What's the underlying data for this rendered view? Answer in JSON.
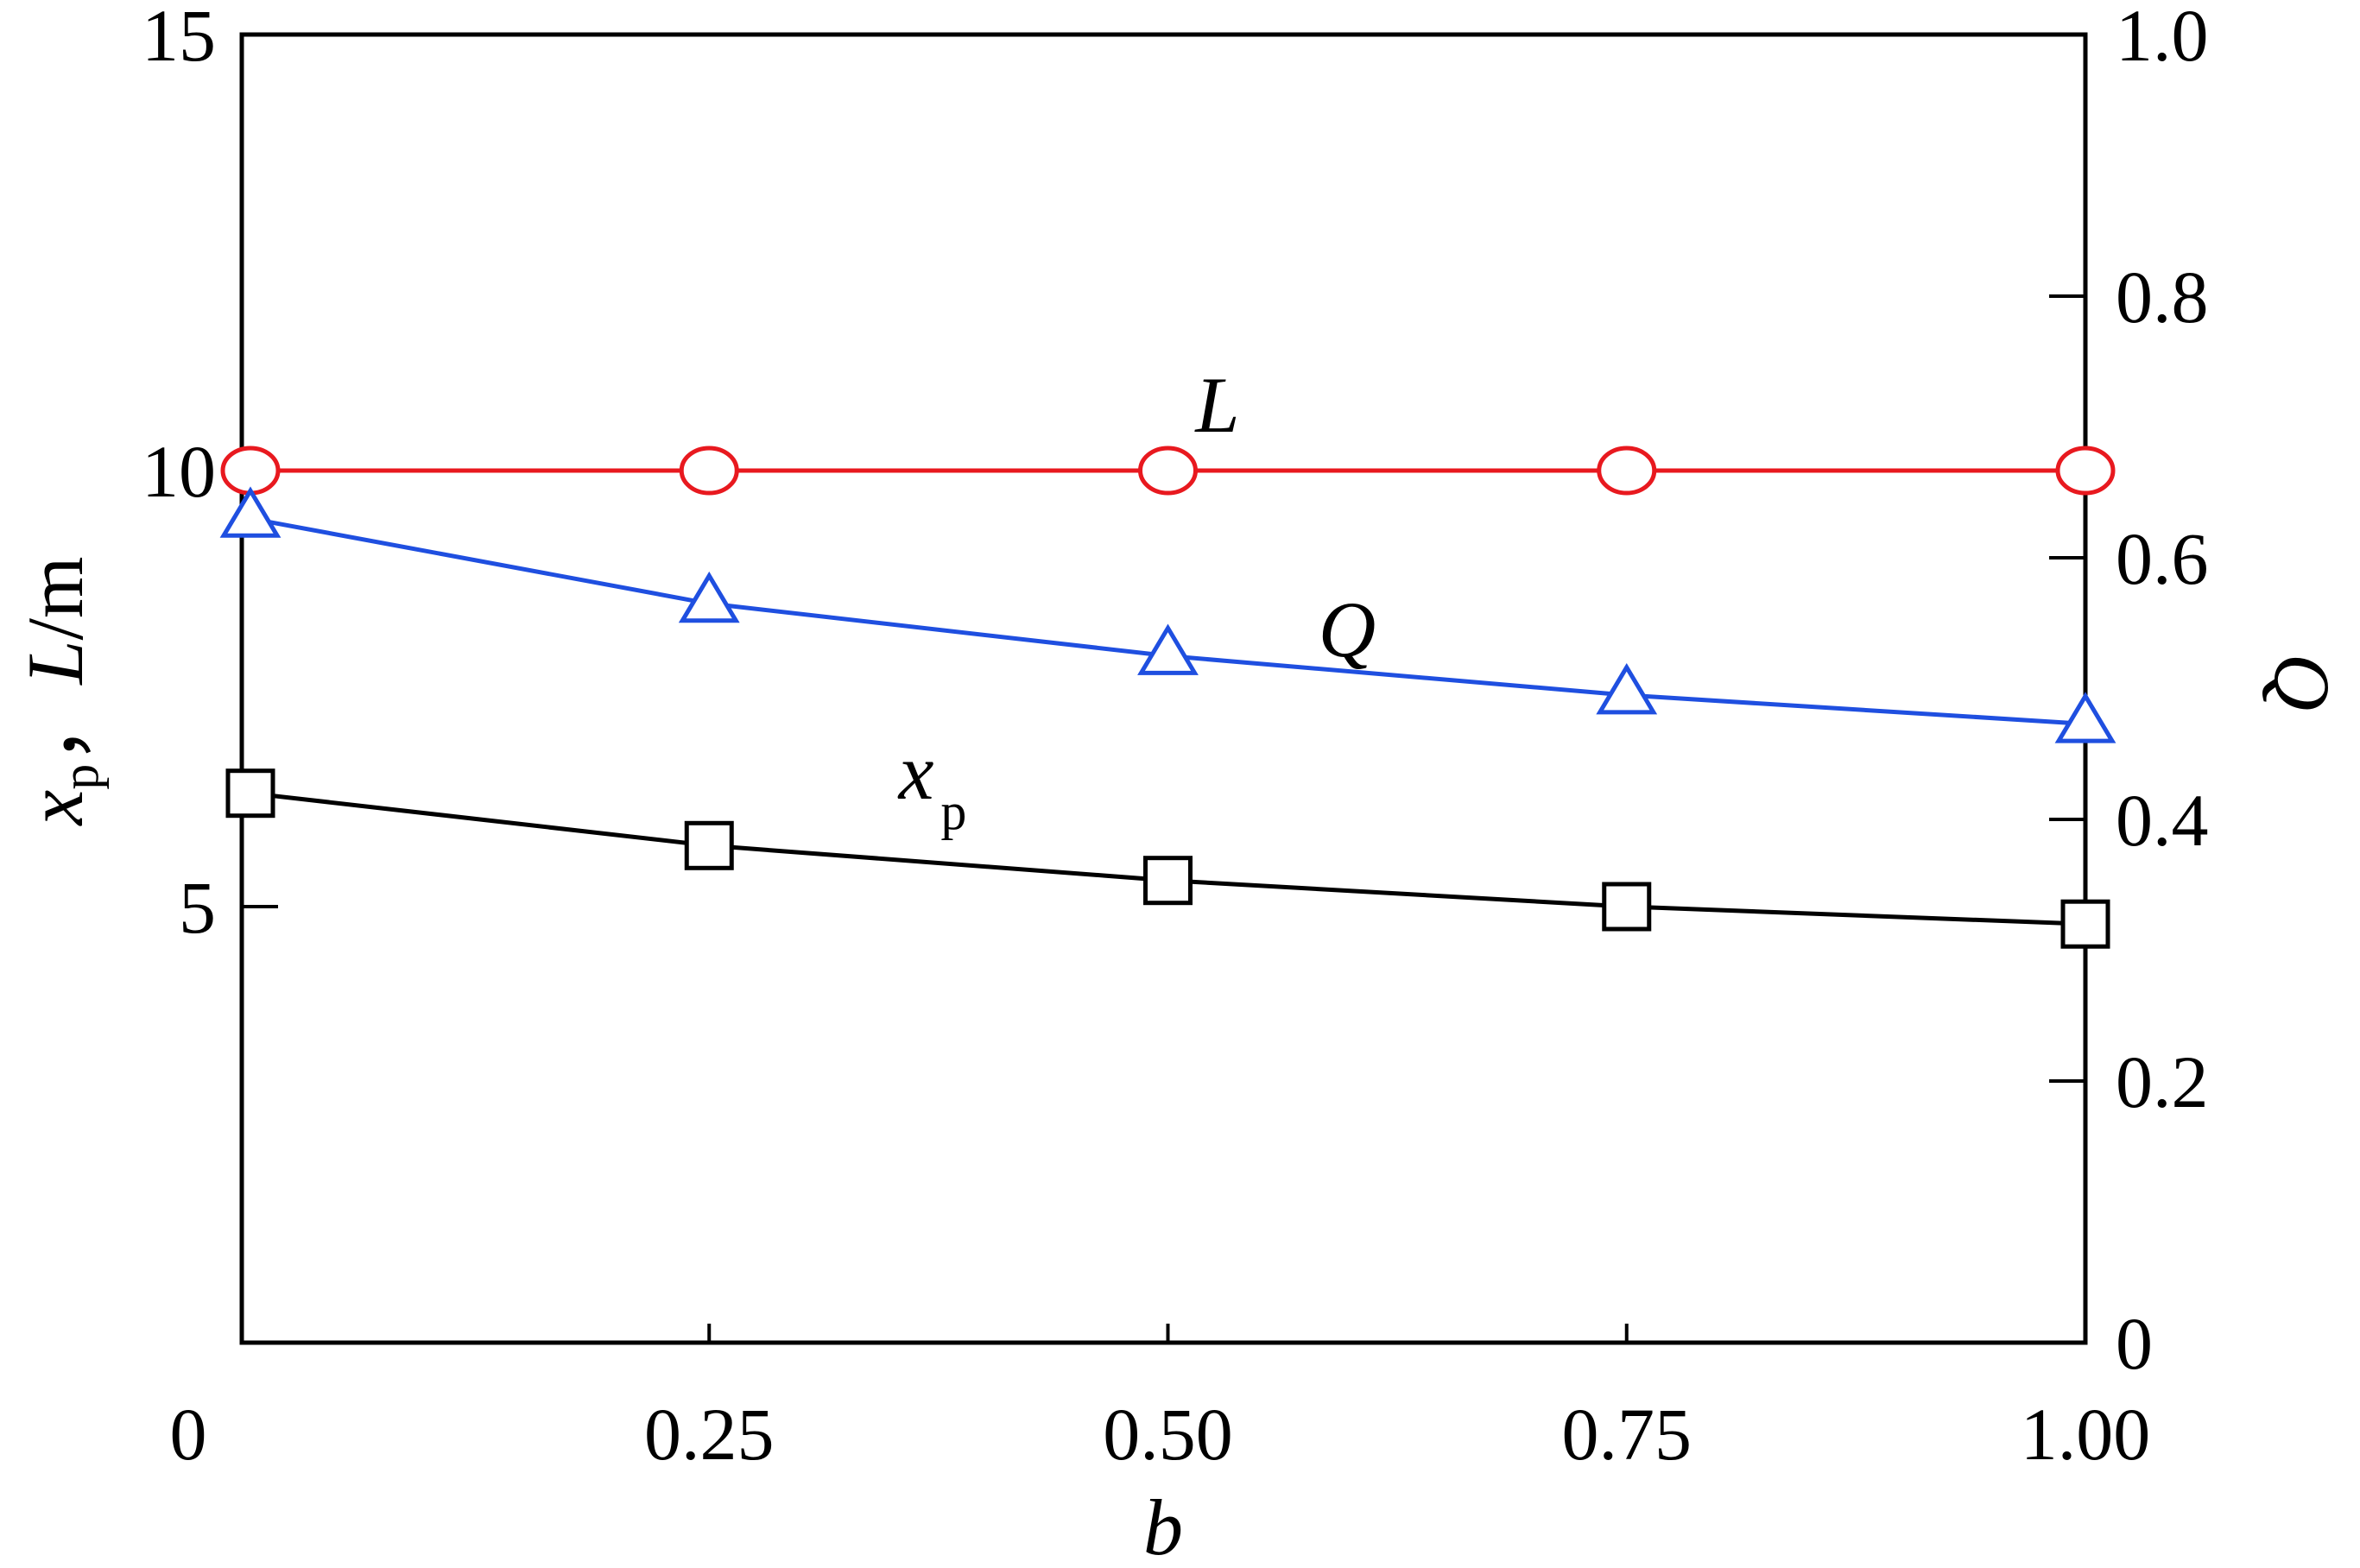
{
  "chart_data": {
    "type": "line",
    "x": [
      0,
      0.25,
      0.5,
      0.75,
      1.0
    ],
    "x_tick_labels": [
      "0",
      "0.25",
      "0.50",
      "0.75",
      "1.00"
    ],
    "xlim": [
      0,
      1.0
    ],
    "xlabel": "b",
    "left_axis": {
      "label_parts": [
        "x",
        "p",
        "，",
        "L",
        "/m"
      ],
      "ylim": [
        0,
        15
      ],
      "ticks": [
        5,
        10,
        15
      ],
      "tick_labels": [
        "5",
        "10",
        "15"
      ]
    },
    "right_axis": {
      "label": "Q",
      "ylim": [
        0,
        1.0
      ],
      "ticks": [
        0,
        0.2,
        0.4,
        0.6,
        0.8,
        1.0
      ],
      "tick_labels": [
        "0",
        "0.2",
        "0.4",
        "0.6",
        "0.8",
        "1.0"
      ]
    },
    "series": [
      {
        "name": "L",
        "axis": "left",
        "color": "#e8191f",
        "marker": "circle",
        "values": [
          10.0,
          10.0,
          10.0,
          10.0,
          10.0
        ]
      },
      {
        "name": "Q",
        "axis": "right",
        "color": "#1f4fe0",
        "marker": "triangle",
        "values": [
          0.63,
          0.565,
          0.525,
          0.495,
          0.473
        ]
      },
      {
        "name_main": "x",
        "name_sub": "p",
        "axis": "left",
        "color": "#000000",
        "marker": "square",
        "values": [
          6.3,
          5.7,
          5.3,
          5.0,
          4.8
        ]
      }
    ],
    "grid": false,
    "legend": "inline labels"
  }
}
